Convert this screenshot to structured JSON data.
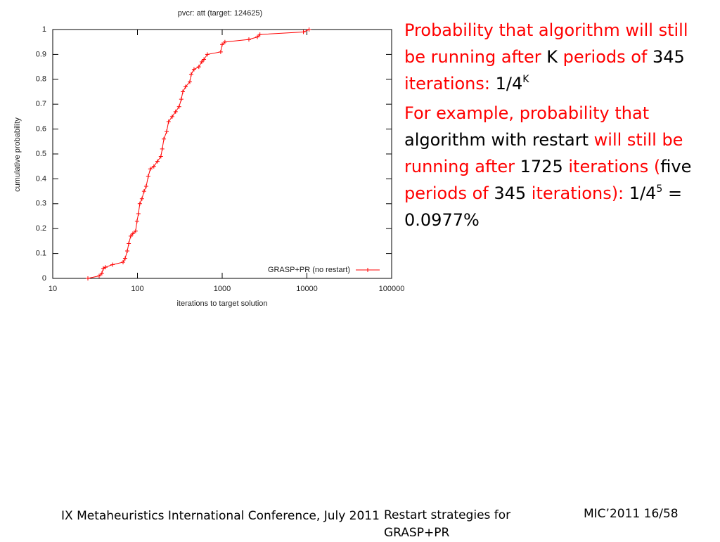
{
  "chart_data": {
    "type": "line",
    "title": "pvcr: att (target: 124625)",
    "xlabel": "iterations to target solution",
    "ylabel": "cumulative probability",
    "x": [
      26,
      35.3,
      38,
      39.5,
      41.9,
      50.8,
      67.6,
      71.5,
      75.8,
      78.9,
      83.3,
      88.2,
      95.1,
      98.8,
      102.6,
      106.6,
      112.9,
      119.6,
      126.8,
      134,
      142,
      156,
      172,
      189,
      196,
      205,
      221,
      233,
      257,
      282,
      310,
      329,
      343,
      370,
      415,
      431,
      465,
      530,
      574,
      609,
      668,
      960,
      1000,
      1077,
      2066,
      2600,
      2789,
      9100,
      10600
    ],
    "series": [
      {
        "name": "GRASP+PR (no restart)",
        "color": "#ff0000",
        "values": [
          0,
          0.01,
          0.02,
          0.04,
          0.045,
          0.055,
          0.065,
          0.08,
          0.11,
          0.14,
          0.17,
          0.18,
          0.19,
          0.23,
          0.26,
          0.3,
          0.32,
          0.35,
          0.37,
          0.41,
          0.44,
          0.45,
          0.47,
          0.49,
          0.52,
          0.56,
          0.59,
          0.63,
          0.65,
          0.67,
          0.69,
          0.72,
          0.75,
          0.77,
          0.79,
          0.82,
          0.84,
          0.85,
          0.87,
          0.88,
          0.9,
          0.91,
          0.94,
          0.95,
          0.96,
          0.97,
          0.98,
          0.99,
          1
        ]
      }
    ],
    "xlim": [
      10,
      100000
    ],
    "ylim": [
      0,
      1
    ],
    "xscale": "log",
    "xticks": [
      10,
      100,
      1000,
      10000,
      100000
    ],
    "yticks": [
      0,
      0.1,
      0.2,
      0.3,
      0.4,
      0.5,
      0.6,
      0.7,
      0.8,
      0.9,
      1
    ],
    "legend": "lower right"
  },
  "notes": {
    "p1": [
      "Probability that algorithm will still be running after ",
      "K",
      " periods of ",
      "345",
      " iterations:",
      " 1/4",
      "K"
    ],
    "p2": [
      "For example, probability that ",
      "algorithm with restart ",
      "will still be running after ",
      "1725 ",
      "iterations (",
      "five ",
      "periods of ",
      "345 ",
      "iterations):",
      "  1/4",
      "5",
      " = 0.0977%"
    ]
  },
  "footer": {
    "conference": "IX Metaheuristics International Conference, July 2011",
    "topic": "Restart strategies for GRASP+PR",
    "page": "MIC’2011 16/58"
  }
}
